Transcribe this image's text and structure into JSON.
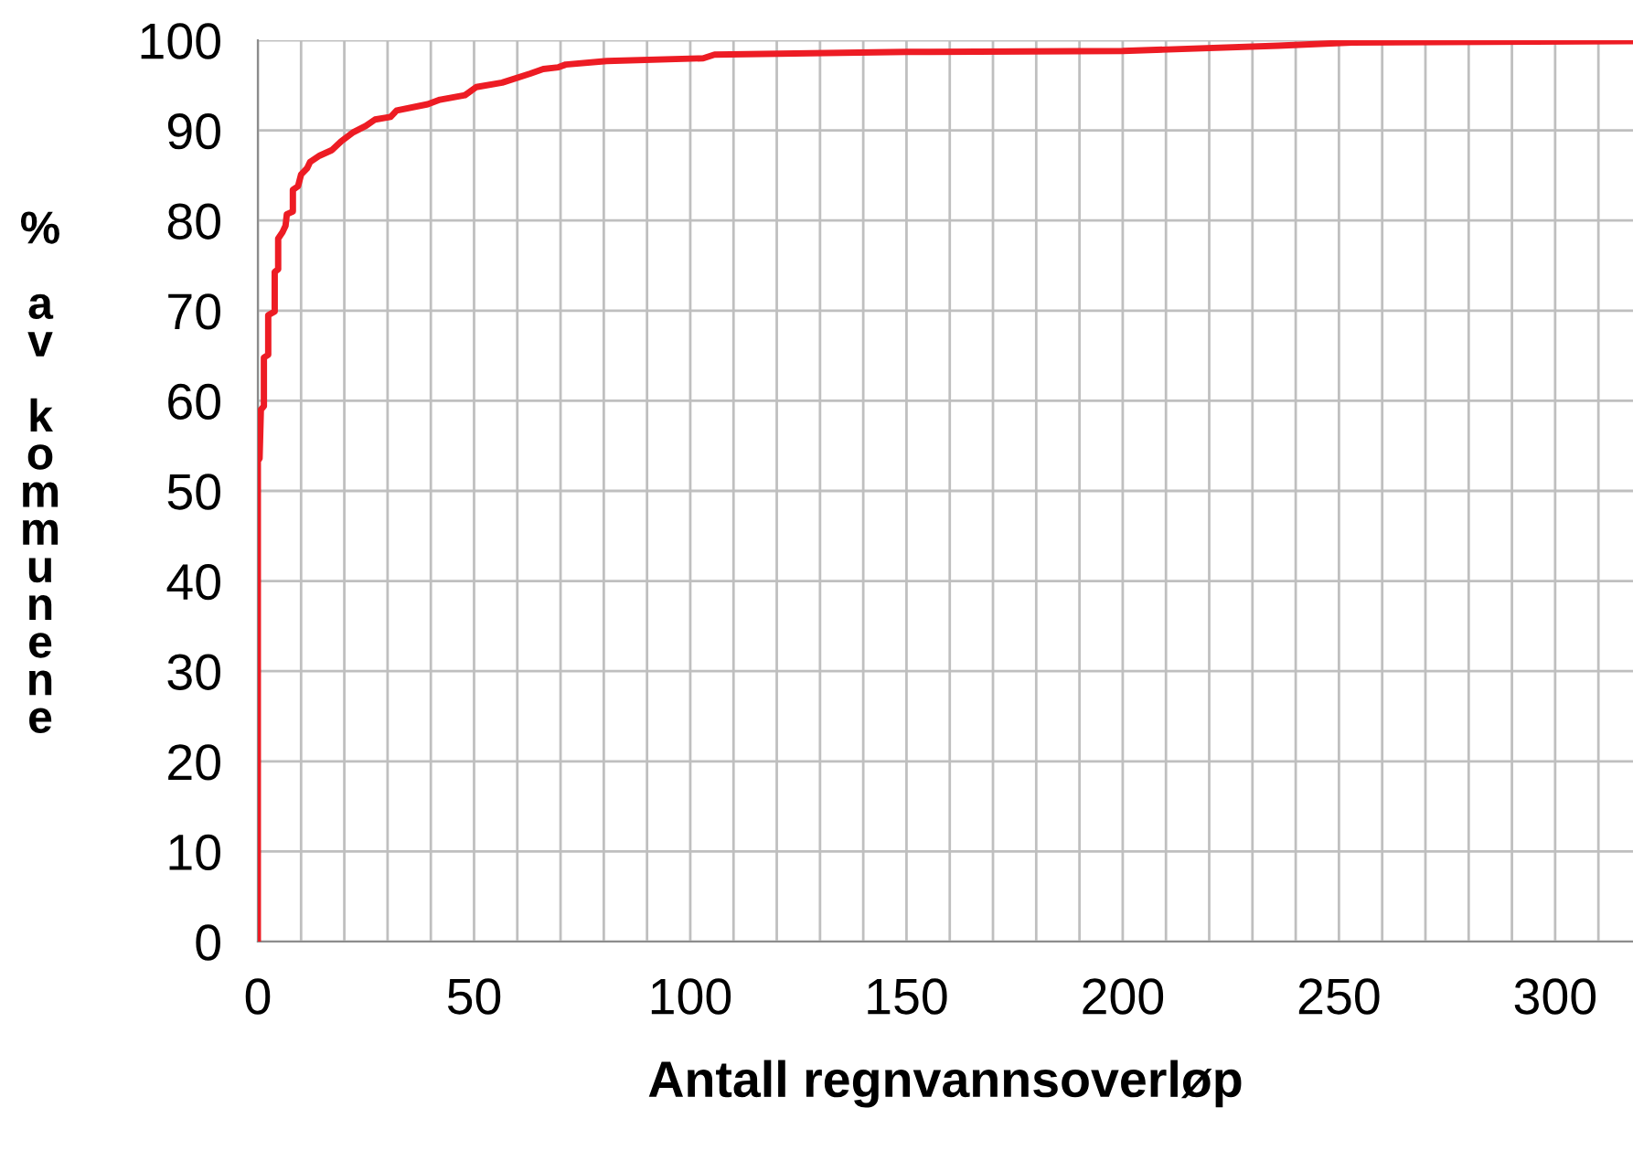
{
  "chart_data": {
    "type": "line",
    "xlabel": "Antall regnvannsoverløp",
    "ylabel": "% av kommunene",
    "series": [
      {
        "color": "#ed1c24",
        "x": [
          0,
          0,
          0.4,
          0.7,
          1.4,
          1.4,
          2.4,
          2.4,
          3.9,
          3.9,
          4.7,
          4.7,
          5.7,
          6.4,
          6.7,
          8.1,
          8.1,
          9.3,
          10,
          11.4,
          12.1,
          14.3,
          17.1,
          19.3,
          22.1,
          25,
          27.1,
          30.7,
          32.1,
          39.3,
          42.1,
          47.9,
          50.5,
          56.5,
          63,
          66,
          69.5,
          71.2,
          80.7,
          103,
          105.6,
          150,
          200,
          236,
          253,
          318
        ],
        "values": [
          0,
          53.3,
          53.6,
          59,
          59.4,
          64.8,
          65.1,
          69.5,
          69.9,
          74.3,
          74.6,
          78,
          78.7,
          79.4,
          80.7,
          81,
          83.4,
          83.8,
          85.1,
          85.8,
          86.5,
          87.2,
          87.8,
          88.8,
          89.8,
          90.5,
          91.2,
          91.5,
          92.2,
          92.9,
          93.4,
          93.9,
          94.8,
          95.3,
          96.3,
          96.8,
          97,
          97.3,
          97.7,
          98,
          98.4,
          98.7,
          98.8,
          99.4,
          99.75,
          99.9
        ]
      }
    ],
    "xlim": [
      0,
      318
    ],
    "xticks": [
      0,
      {
        "value": 10,
        "label": null
      },
      {
        "value": 20,
        "label": null
      },
      {
        "value": 30,
        "label": null
      },
      {
        "value": 40,
        "label": null
      },
      50,
      {
        "value": 60,
        "label": null
      },
      {
        "value": 70,
        "label": null
      },
      {
        "value": 80,
        "label": null
      },
      {
        "value": 90,
        "label": null
      },
      100,
      {
        "value": 110,
        "label": null
      },
      {
        "value": 120,
        "label": null
      },
      {
        "value": 130,
        "label": null
      },
      {
        "value": 140,
        "label": null
      },
      150,
      {
        "value": 160,
        "label": null
      },
      {
        "value": 170,
        "label": null
      },
      {
        "value": 180,
        "label": null
      },
      {
        "value": 190,
        "label": null
      },
      200,
      {
        "value": 210,
        "label": null
      },
      {
        "value": 220,
        "label": null
      },
      {
        "value": 230,
        "label": null
      },
      {
        "value": 240,
        "label": null
      },
      250,
      {
        "value": 260,
        "label": null
      },
      {
        "value": 270,
        "label": null
      },
      {
        "value": 280,
        "label": null
      },
      {
        "value": 290,
        "label": null
      },
      300,
      {
        "value": 310,
        "label": null
      }
    ],
    "ylim": [
      0,
      100
    ],
    "yticks": [
      0,
      10,
      20,
      30,
      40,
      50,
      60,
      70,
      80,
      90,
      100
    ],
    "grid": true,
    "marker": "none",
    "line_style": "solid"
  }
}
